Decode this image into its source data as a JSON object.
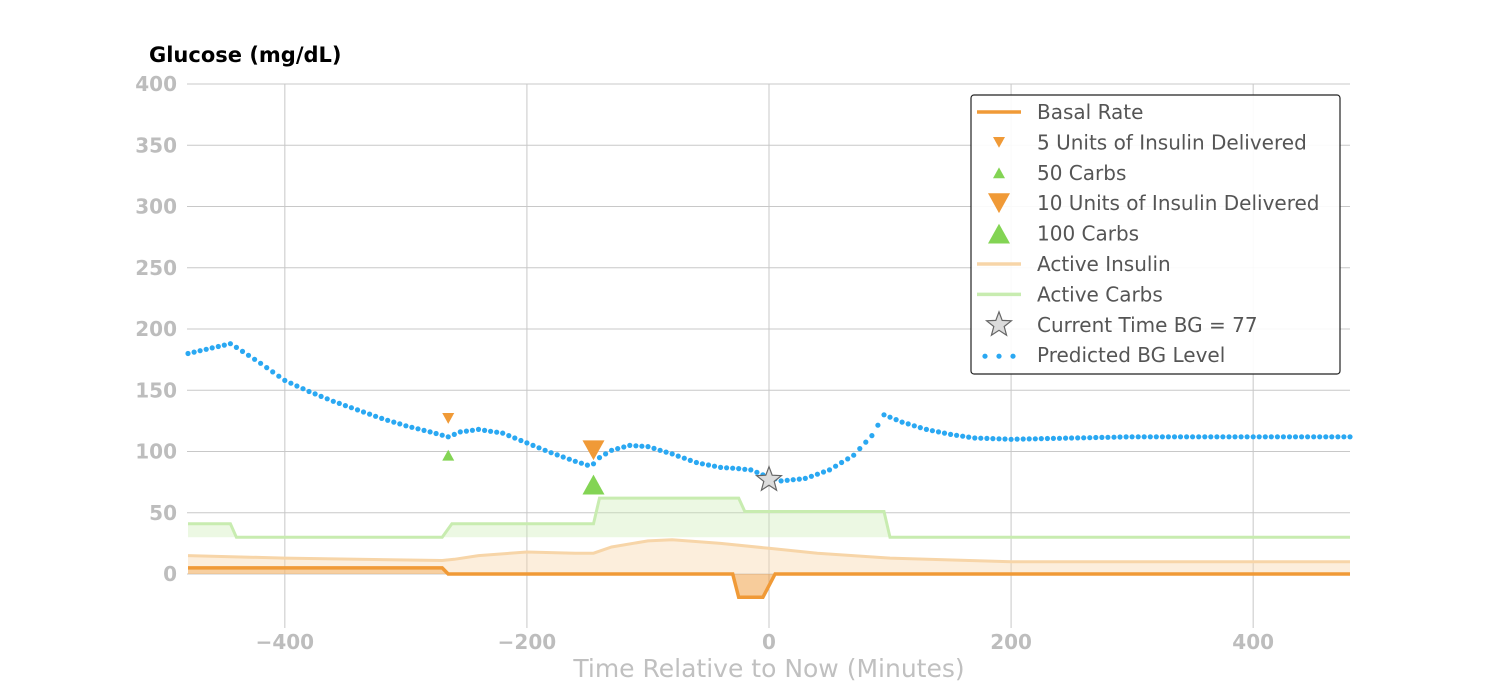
{
  "chart_data": {
    "type": "line",
    "title": "Glucose (mg/dL)",
    "xlabel": "Time Relative to Now (Minutes)",
    "ylabel": "",
    "xlim": [
      -480,
      480
    ],
    "ylim": [
      -45,
      400
    ],
    "x_ticks": [
      -400,
      -200,
      0,
      200,
      400
    ],
    "x_tick_labels": [
      "−400",
      "−200",
      "0",
      "200",
      "400"
    ],
    "y_ticks": [
      0,
      50,
      100,
      150,
      200,
      250,
      300,
      350,
      400
    ],
    "y_tick_labels": [
      "0",
      "50",
      "100",
      "150",
      "200",
      "250",
      "300",
      "350",
      "400"
    ],
    "grid": true,
    "legend_position": "top-right",
    "colors": {
      "basal": "#f09a37",
      "insulin_marker": "#f09a37",
      "carb_marker": "#83d454",
      "active_insulin": "#f7d5a8",
      "active_carbs": "#c8ecb0",
      "predicted": "#2aa8f2",
      "current": "#dcdcdc"
    },
    "legend": [
      {
        "key": "basal",
        "label": "Basal Rate"
      },
      {
        "key": "insulin5",
        "label": "5 Units of Insulin Delivered"
      },
      {
        "key": "carbs50",
        "label": "50 Carbs"
      },
      {
        "key": "insulin10",
        "label": "10 Units of Insulin Delivered"
      },
      {
        "key": "carbs100",
        "label": "100 Carbs"
      },
      {
        "key": "active_insulin",
        "label": "Active Insulin"
      },
      {
        "key": "active_carbs",
        "label": "Active Carbs"
      },
      {
        "key": "current",
        "label": "Current Time BG =  77"
      },
      {
        "key": "predicted",
        "label": "Predicted BG Level"
      }
    ],
    "series": [
      {
        "name": "Basal Rate",
        "points": [
          [
            -480,
            5
          ],
          [
            -270,
            5
          ],
          [
            -265,
            0
          ],
          [
            -30,
            0
          ],
          [
            -25,
            -19
          ],
          [
            -5,
            -19
          ],
          [
            5,
            0
          ],
          [
            480,
            0
          ]
        ]
      },
      {
        "name": "Active Insulin",
        "points": [
          [
            -480,
            15
          ],
          [
            -400,
            13
          ],
          [
            -270,
            11
          ],
          [
            -260,
            12
          ],
          [
            -240,
            15
          ],
          [
            -200,
            18
          ],
          [
            -160,
            17
          ],
          [
            -145,
            17
          ],
          [
            -130,
            22
          ],
          [
            -100,
            27
          ],
          [
            -80,
            28
          ],
          [
            -40,
            25
          ],
          [
            0,
            21
          ],
          [
            40,
            17
          ],
          [
            100,
            13
          ],
          [
            200,
            10
          ],
          [
            300,
            10
          ],
          [
            480,
            10
          ]
        ]
      },
      {
        "name": "Active Carbs",
        "points": [
          [
            -480,
            41
          ],
          [
            -445,
            41
          ],
          [
            -440,
            30
          ],
          [
            -270,
            30
          ],
          [
            -262,
            41
          ],
          [
            -145,
            41
          ],
          [
            -140,
            62
          ],
          [
            -25,
            62
          ],
          [
            -20,
            51
          ],
          [
            95,
            51
          ],
          [
            100,
            30
          ],
          [
            480,
            30
          ]
        ]
      },
      {
        "name": "Predicted BG Level",
        "points": [
          [
            -480,
            180
          ],
          [
            -445,
            188
          ],
          [
            -440,
            185
          ],
          [
            -420,
            172
          ],
          [
            -400,
            158
          ],
          [
            -380,
            149
          ],
          [
            -360,
            141
          ],
          [
            -340,
            134
          ],
          [
            -320,
            127
          ],
          [
            -300,
            121
          ],
          [
            -280,
            116
          ],
          [
            -265,
            112
          ],
          [
            -255,
            116
          ],
          [
            -240,
            118
          ],
          [
            -220,
            115
          ],
          [
            -200,
            107
          ],
          [
            -180,
            99
          ],
          [
            -160,
            92
          ],
          [
            -147,
            88
          ],
          [
            -140,
            95
          ],
          [
            -130,
            101
          ],
          [
            -115,
            105
          ],
          [
            -100,
            104
          ],
          [
            -80,
            98
          ],
          [
            -60,
            91
          ],
          [
            -40,
            87
          ],
          [
            -25,
            86
          ],
          [
            -15,
            85
          ],
          [
            -5,
            81
          ],
          [
            10,
            76
          ],
          [
            30,
            78
          ],
          [
            50,
            85
          ],
          [
            70,
            97
          ],
          [
            85,
            113
          ],
          [
            95,
            130
          ],
          [
            110,
            124
          ],
          [
            130,
            118
          ],
          [
            150,
            114
          ],
          [
            170,
            111
          ],
          [
            200,
            110
          ],
          [
            250,
            111
          ],
          [
            300,
            112
          ],
          [
            400,
            112
          ],
          [
            480,
            112
          ]
        ]
      }
    ],
    "markers": [
      {
        "name": "5 Units of Insulin Delivered",
        "shape": "triangle-down",
        "size": "small",
        "x": -265,
        "y": 127
      },
      {
        "name": "50 Carbs",
        "shape": "triangle-up",
        "size": "small",
        "x": -265,
        "y": 97
      },
      {
        "name": "10 Units of Insulin Delivered",
        "shape": "triangle-down",
        "size": "large",
        "x": -145,
        "y": 101
      },
      {
        "name": "100 Carbs",
        "shape": "triangle-up",
        "size": "large",
        "x": -145,
        "y": 73
      },
      {
        "name": "Current Time BG =  77",
        "shape": "star",
        "size": "large",
        "x": 0,
        "y": 77
      }
    ]
  }
}
